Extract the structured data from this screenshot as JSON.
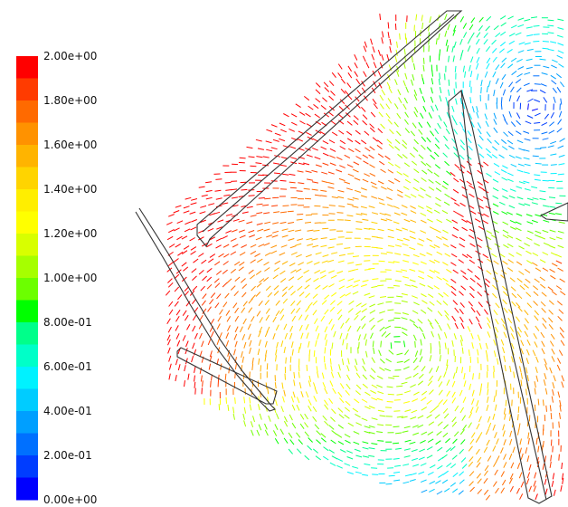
{
  "colorbar": {
    "min": 0.0,
    "max": 2.0,
    "levels": 20,
    "tick_labels": [
      "2.00e+00",
      "1.80e+00",
      "1.60e+00",
      "1.40e+00",
      "1.20e+00",
      "1.00e+00",
      "8.00e-01",
      "6.00e-01",
      "4.00e-01",
      "2.00e-01",
      "0.00e+00"
    ],
    "colors": [
      "#ff0000",
      "#ff3b00",
      "#ff6a00",
      "#ff9200",
      "#ffb400",
      "#ffd400",
      "#ffee00",
      "#ffff00",
      "#d8ff00",
      "#a6ff00",
      "#6cff00",
      "#00ff00",
      "#00ff8a",
      "#00ffc8",
      "#00f2ff",
      "#00ccff",
      "#009fff",
      "#0070ff",
      "#003dff",
      "#0000ff"
    ]
  },
  "field": {
    "vortices": [
      {
        "cx": 440,
        "cy": 380,
        "strength": 1.0
      },
      {
        "cx": 590,
        "cy": 120,
        "strength": 0.9
      }
    ],
    "structures": [
      "upper-baffle",
      "right-baffle",
      "left-arc-wall",
      "lower-left-plate",
      "right-stub"
    ]
  }
}
